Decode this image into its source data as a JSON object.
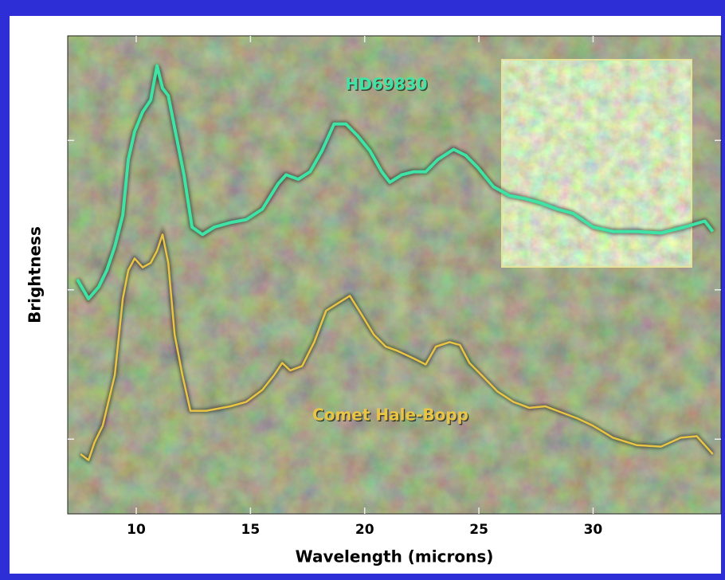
{
  "chart_data": {
    "type": "line",
    "xlabel": "Wavelength (microns)",
    "ylabel": "Brightness",
    "xlim": [
      7,
      35.6
    ],
    "xticks": [
      10,
      15,
      20,
      25,
      30
    ],
    "ylim": [
      0.5,
      3.7
    ],
    "yticks": [
      1,
      2,
      3
    ],
    "series": [
      {
        "name": "HD69830",
        "color": "#3fe3a6",
        "x": [
          7.42,
          7.91,
          8.36,
          8.71,
          9.06,
          9.41,
          9.65,
          9.93,
          10.28,
          10.63,
          10.91,
          11.15,
          11.4,
          11.75,
          12.09,
          12.44,
          12.9,
          13.42,
          14.12,
          14.82,
          15.52,
          16.21,
          16.56,
          17.09,
          17.61,
          18.13,
          18.66,
          19.18,
          19.7,
          20.23,
          20.75,
          21.1,
          21.62,
          22.15,
          22.67,
          23.19,
          23.89,
          24.42,
          24.94,
          25.64,
          26.34,
          27.03,
          27.73,
          28.43,
          29.13,
          30.0,
          30.87,
          31.92,
          32.97,
          34.01,
          34.89,
          35.24
        ],
        "values": [
          2.07,
          1.94,
          2.02,
          2.13,
          2.29,
          2.5,
          2.87,
          3.06,
          3.19,
          3.27,
          3.5,
          3.35,
          3.3,
          3.03,
          2.77,
          2.42,
          2.37,
          2.42,
          2.45,
          2.47,
          2.54,
          2.71,
          2.77,
          2.74,
          2.79,
          2.93,
          3.11,
          3.11,
          3.03,
          2.93,
          2.79,
          2.72,
          2.77,
          2.79,
          2.79,
          2.87,
          2.94,
          2.9,
          2.82,
          2.69,
          2.63,
          2.61,
          2.58,
          2.54,
          2.51,
          2.42,
          2.39,
          2.39,
          2.38,
          2.42,
          2.46,
          2.39
        ]
      },
      {
        "name": "Comet Hale-Bopp",
        "color": "#e9c445",
        "x": [
          7.56,
          7.91,
          8.18,
          8.53,
          9.06,
          9.41,
          9.65,
          9.93,
          10.28,
          10.63,
          10.91,
          11.15,
          11.4,
          11.68,
          12.02,
          12.37,
          13.07,
          14.12,
          14.82,
          15.52,
          16.04,
          16.39,
          16.74,
          17.26,
          17.79,
          18.31,
          18.83,
          19.35,
          19.88,
          20.4,
          20.92,
          21.45,
          22.15,
          22.67,
          23.12,
          23.72,
          24.17,
          24.59,
          25.11,
          25.81,
          26.51,
          27.21,
          27.91,
          28.6,
          29.3,
          30.0,
          30.87,
          31.92,
          32.97,
          33.84,
          34.54,
          35.24
        ],
        "values": [
          0.9,
          0.86,
          0.98,
          1.09,
          1.43,
          1.94,
          2.13,
          2.21,
          2.15,
          2.18,
          2.26,
          2.37,
          2.18,
          1.7,
          1.43,
          1.19,
          1.19,
          1.22,
          1.25,
          1.33,
          1.43,
          1.51,
          1.46,
          1.49,
          1.65,
          1.86,
          1.91,
          1.96,
          1.83,
          1.7,
          1.62,
          1.59,
          1.54,
          1.5,
          1.62,
          1.65,
          1.63,
          1.51,
          1.43,
          1.32,
          1.25,
          1.21,
          1.22,
          1.18,
          1.14,
          1.09,
          1.01,
          0.96,
          0.95,
          1.01,
          1.02,
          0.9
        ]
      }
    ]
  }
}
